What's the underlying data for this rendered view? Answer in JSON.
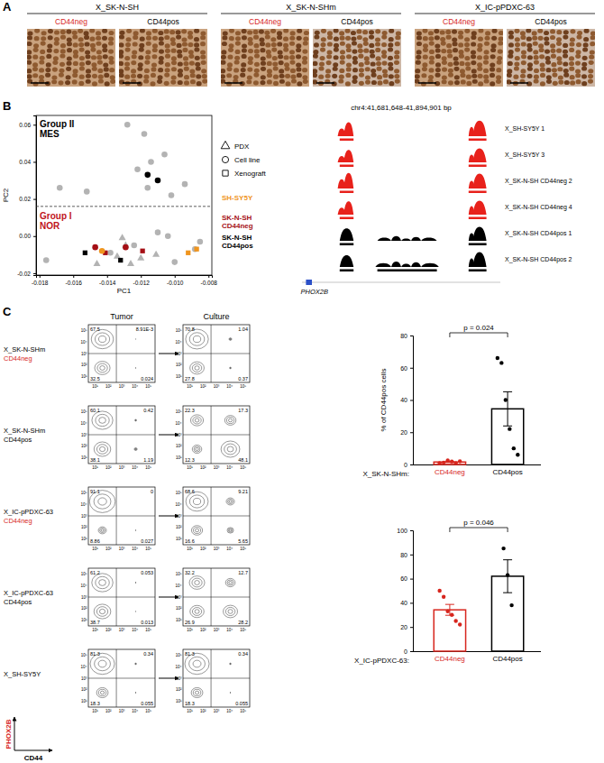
{
  "panel_letters": [
    "A",
    "B",
    "C"
  ],
  "panel_a": {
    "groups": [
      {
        "title": "X_SK-N-SH",
        "images": [
          {
            "label": "CD44neg",
            "color": "#d7261e"
          },
          {
            "label": "CD44pos",
            "color": "#000000"
          }
        ]
      },
      {
        "title": "X_SK-N-SHm",
        "images": [
          {
            "label": "CD44neg",
            "color": "#d7261e"
          },
          {
            "label": "CD44pos",
            "color": "#000000"
          }
        ]
      },
      {
        "title": "X_IC-pPDXC-63",
        "images": [
          {
            "label": "CD44neg",
            "color": "#d7261e"
          },
          {
            "label": "CD44pos",
            "color": "#000000"
          }
        ]
      }
    ]
  },
  "chart_data": [
    {
      "type": "scatter",
      "xlabel": "PC1",
      "ylabel": "PC2",
      "xlim": [
        -0.0182,
        -0.0078
      ],
      "ylim": [
        -0.021,
        0.065
      ],
      "xticks": [
        -0.018,
        -0.016,
        -0.014,
        -0.012,
        {
          "value": -0.01,
          "label": "-0.010"
        },
        -0.008
      ],
      "yticks": [
        -0.02,
        {
          "value": 0,
          "label": "0.00"
        },
        0.02,
        0.04,
        0.06
      ],
      "series": [
        {
          "color": "#b3b3b3",
          "marker": "circle",
          "x": [
            -0.0128,
            -0.0118,
            -0.0106,
            -0.0114,
            -0.0122,
            -0.0094,
            -0.0102,
            -0.0116,
            -0.0168,
            -0.0152,
            -0.0176,
            -0.0124,
            -0.011,
            -0.0104,
            -0.01,
            -0.0088,
            -0.0085,
            -0.0138
          ],
          "values": [
            0.06,
            0.055,
            0.044,
            0.04,
            0.036,
            0.028,
            0.022,
            0.026,
            0.026,
            0.024,
            -0.013,
            -0.005,
            0.002,
            0.0,
            -0.014,
            -0.007,
            -0.003,
            -0.009
          ]
        },
        {
          "color": "#b3b3b3",
          "marker": "triangle",
          "x": [
            -0.0131,
            -0.0129,
            -0.0111,
            -0.0134,
            -0.012,
            -0.0126,
            -0.0146
          ],
          "values": [
            -0.001,
            -0.005,
            -0.01,
            -0.011,
            -0.012,
            -0.015,
            -0.015
          ]
        },
        {
          "color": "#000000",
          "marker": "circle",
          "x": [
            -0.0116,
            -0.011
          ],
          "values": [
            0.033,
            0.03
          ]
        },
        {
          "color": "#000000",
          "marker": "square",
          "x": [
            -0.0153,
            -0.0132
          ],
          "values": [
            -0.009,
            -0.013
          ]
        },
        {
          "color": "#a50f15",
          "marker": "circle",
          "x": [
            -0.0147,
            -0.0129
          ],
          "values": [
            -0.006,
            -0.006
          ]
        },
        {
          "color": "#a50f15",
          "marker": "square",
          "x": [
            -0.0141,
            -0.0119
          ],
          "values": [
            -0.009,
            -0.008
          ]
        },
        {
          "color": "#f0951e",
          "marker": "circle",
          "x": [
            -0.0143
          ],
          "values": [
            -0.008
          ]
        },
        {
          "color": "#f0951e",
          "marker": "square",
          "x": [
            -0.0092,
            -0.0087
          ],
          "values": [
            -0.009,
            -0.007
          ]
        }
      ],
      "reference_line": {
        "y": 0.016,
        "line_style": "dashed"
      },
      "annotations": [
        {
          "lines": [
            "Group II",
            "MES"
          ],
          "color": "#000000"
        },
        {
          "lines": [
            "Group I",
            "NOR"
          ],
          "color": "#c0141c"
        }
      ],
      "shape_legend": [
        {
          "label": "PDX",
          "marker": "triangle"
        },
        {
          "label": "Cell line",
          "marker": "circle"
        },
        {
          "label": "Xenograft",
          "marker": "square"
        }
      ],
      "color_legend": [
        {
          "label": "SH-SY5Y",
          "color": "#f0951e"
        },
        {
          "label": "SK-N-SH CD44neg",
          "color": "#a50f15"
        },
        {
          "label": "SK-N-SH CD44pos",
          "color": "#000000"
        }
      ]
    },
    {
      "type": "bar",
      "categories": [
        "CD44neg",
        "CD44pos"
      ],
      "colors": [
        "#d7261e",
        "#000000"
      ],
      "values": [
        1.53,
        34.5
      ],
      "errors": [
        0.28,
        10.6
      ],
      "points": [
        [
          0.8,
          1.2,
          2.5,
          1.8,
          0.9,
          2.0
        ],
        [
          66,
          63,
          40,
          22,
          10,
          6
        ]
      ],
      "ylim": [
        0,
        80
      ],
      "yticks": [
        0,
        20,
        40,
        60,
        80
      ],
      "ylabel": "% of CD44pos cells",
      "group_label": "X_SK-N-SHm:",
      "annotation": "p = 0.024"
    },
    {
      "type": "bar",
      "categories": [
        "CD44neg",
        "CD44pos"
      ],
      "colors": [
        "#d7261e",
        "#000000"
      ],
      "values": [
        34.2,
        62
      ],
      "errors": [
        4.5,
        13.6
      ],
      "points": [
        [
          50,
          45,
          33,
          30,
          25,
          22
        ],
        [
          85,
          63,
          38
        ]
      ],
      "ylim": [
        0,
        100
      ],
      "yticks": [
        0,
        20,
        40,
        60,
        80,
        100
      ],
      "group_label": "X_IC-pPDXC-63:",
      "annotation": "p = 0.046"
    }
  ],
  "tracks": {
    "title": "chr4:41,681,648-41,894,901 bp",
    "start": 41681648,
    "end": 41894901,
    "tracks": [
      {
        "label": "X_SH-SY5Y 1",
        "color": "#e8211b",
        "peaks": [
          {
            "start": 41720034,
            "end": 41728564,
            "height": 0.5
          },
          {
            "start": 41726431,
            "end": 41737094,
            "height": 0.9
          },
          {
            "start": 41860781,
            "end": 41867178,
            "height": 0.6
          },
          {
            "start": 41865046,
            "end": 41879973,
            "height": 1.0
          }
        ],
        "calls": [
          [
            41722166,
            41737094
          ],
          [
            41860781,
            41879973
          ]
        ]
      },
      {
        "label": "X_SH-SY5Y 3",
        "color": "#e8211b",
        "peaks": [
          {
            "start": 41720034,
            "end": 41728564,
            "height": 0.4
          },
          {
            "start": 41726431,
            "end": 41737094,
            "height": 0.8
          },
          {
            "start": 41860781,
            "end": 41867178,
            "height": 0.5
          },
          {
            "start": 41865046,
            "end": 41879973,
            "height": 0.9
          }
        ],
        "calls": [
          [
            41722166,
            41737094
          ],
          [
            41860781,
            41879973
          ]
        ]
      },
      {
        "label": "X_SK-N-SH CD44neg 2",
        "color": "#e8211b",
        "peaks": [
          {
            "start": 41720034,
            "end": 41728564,
            "height": 0.6
          },
          {
            "start": 41726431,
            "end": 41737094,
            "height": 1.0
          },
          {
            "start": 41860781,
            "end": 41867178,
            "height": 0.5
          },
          {
            "start": 41865046,
            "end": 41879973,
            "height": 0.95
          }
        ],
        "calls": [
          [
            41722166,
            41737094
          ],
          [
            41860781,
            41879973
          ]
        ]
      },
      {
        "label": "X_SK-N-SH CD44neg 4",
        "color": "#e8211b",
        "peaks": [
          {
            "start": 41720034,
            "end": 41728564,
            "height": 0.45
          },
          {
            "start": 41726431,
            "end": 41737094,
            "height": 0.85
          },
          {
            "start": 41860781,
            "end": 41867178,
            "height": 0.55
          },
          {
            "start": 41865046,
            "end": 41879973,
            "height": 0.9
          }
        ],
        "calls": [
          [
            41722166,
            41737094
          ],
          [
            41860781,
            41879973
          ]
        ]
      },
      {
        "label": "X_SK-N-SH CD44pos 1",
        "color": "#000000",
        "peaks": [
          {
            "start": 41722166,
            "end": 41737094,
            "height": 0.8
          },
          {
            "start": 41762684,
            "end": 41777612,
            "height": 0.2
          },
          {
            "start": 41777612,
            "end": 41788275,
            "height": 0.3
          },
          {
            "start": 41788275,
            "end": 41798937,
            "height": 0.15
          },
          {
            "start": 41798937,
            "end": 41809600,
            "height": 0.25
          },
          {
            "start": 41809600,
            "end": 41826660,
            "height": 0.2
          },
          {
            "start": 41860781,
            "end": 41867178,
            "height": 0.5
          },
          {
            "start": 41865046,
            "end": 41879973,
            "height": 0.9
          }
        ],
        "calls": [
          [
            41722166,
            41737094
          ],
          [
            41860781,
            41879973
          ]
        ]
      },
      {
        "label": "X_SK-N-SH CD44pos 2",
        "color": "#000000",
        "peaks": [
          {
            "start": 41722166,
            "end": 41737094,
            "height": 0.75
          },
          {
            "start": 41760552,
            "end": 41777612,
            "height": 0.25
          },
          {
            "start": 41777612,
            "end": 41788275,
            "height": 0.35
          },
          {
            "start": 41788275,
            "end": 41798937,
            "height": 0.2
          },
          {
            "start": 41798937,
            "end": 41809600,
            "height": 0.3
          },
          {
            "start": 41809600,
            "end": 41828793,
            "height": 0.25
          },
          {
            "start": 41860781,
            "end": 41867178,
            "height": 0.55
          },
          {
            "start": 41865046,
            "end": 41879973,
            "height": 0.95
          }
        ],
        "calls": [
          [
            41722166,
            41737094
          ],
          [
            41762684,
            41826660
          ],
          [
            41860781,
            41879973
          ]
        ]
      }
    ],
    "gene": {
      "name": "PHOX2B",
      "start": 41685913,
      "end": 41692311,
      "color": "#2b50c8"
    }
  },
  "flow": {
    "col_titles": [
      "Tumor",
      "Culture"
    ],
    "xlabel": "CD44",
    "ylabel": "PHOX2B",
    "ylabel_color": "#d7261e",
    "tick_labels": [
      "10¹",
      "10²",
      "10³",
      "10⁴",
      "10⁵"
    ],
    "rows": [
      {
        "label": "X_SK-N-SHm",
        "sublabel": "CD44neg",
        "sublabel_color": "#d7261e",
        "plots": [
          {
            "ul": "67.5",
            "ur": "8.91E-3",
            "ll": "32.5",
            "lr": "0.024"
          },
          {
            "ul": "70.8",
            "ur": "1.04",
            "ll": "27.8",
            "lr": "0.37"
          }
        ]
      },
      {
        "label": "X_SK-N-SHm",
        "sublabel": "CD44pos",
        "sublabel_color": "#000000",
        "plots": [
          {
            "ul": "60.1",
            "ur": "0.42",
            "ll": "38.1",
            "lr": "1.19"
          },
          {
            "ul": "22.3",
            "ur": "17.3",
            "ll": "12.3",
            "lr": "48.1"
          }
        ]
      },
      {
        "label": "X_IC-pPDXC-63",
        "sublabel": "CD44neg",
        "sublabel_color": "#d7261e",
        "plots": [
          {
            "ul": "91.1",
            "ur": "0",
            "ll": "8.86",
            "lr": "0.027"
          },
          {
            "ul": "68.6",
            "ur": "9.21",
            "ll": "16.6",
            "lr": "5.65"
          }
        ]
      },
      {
        "label": "X_IC-pPDXC-63",
        "sublabel": "CD44pos",
        "sublabel_color": "#000000",
        "plots": [
          {
            "ul": "61.2",
            "ur": "0.053",
            "ll": "38.7",
            "lr": "0.013"
          },
          {
            "ul": "32.2",
            "ur": "12.7",
            "ll": "26.9",
            "lr": "28.2"
          }
        ]
      },
      {
        "label": "X_SH-SY5Y",
        "plots": [
          {
            "ul": "81.3",
            "ur": "0.34",
            "ll": "18.3",
            "lr": "0.055"
          },
          {
            "ul": "81.3",
            "ur": "0.34",
            "ll": "18.3",
            "lr": "0.055"
          }
        ]
      }
    ]
  }
}
